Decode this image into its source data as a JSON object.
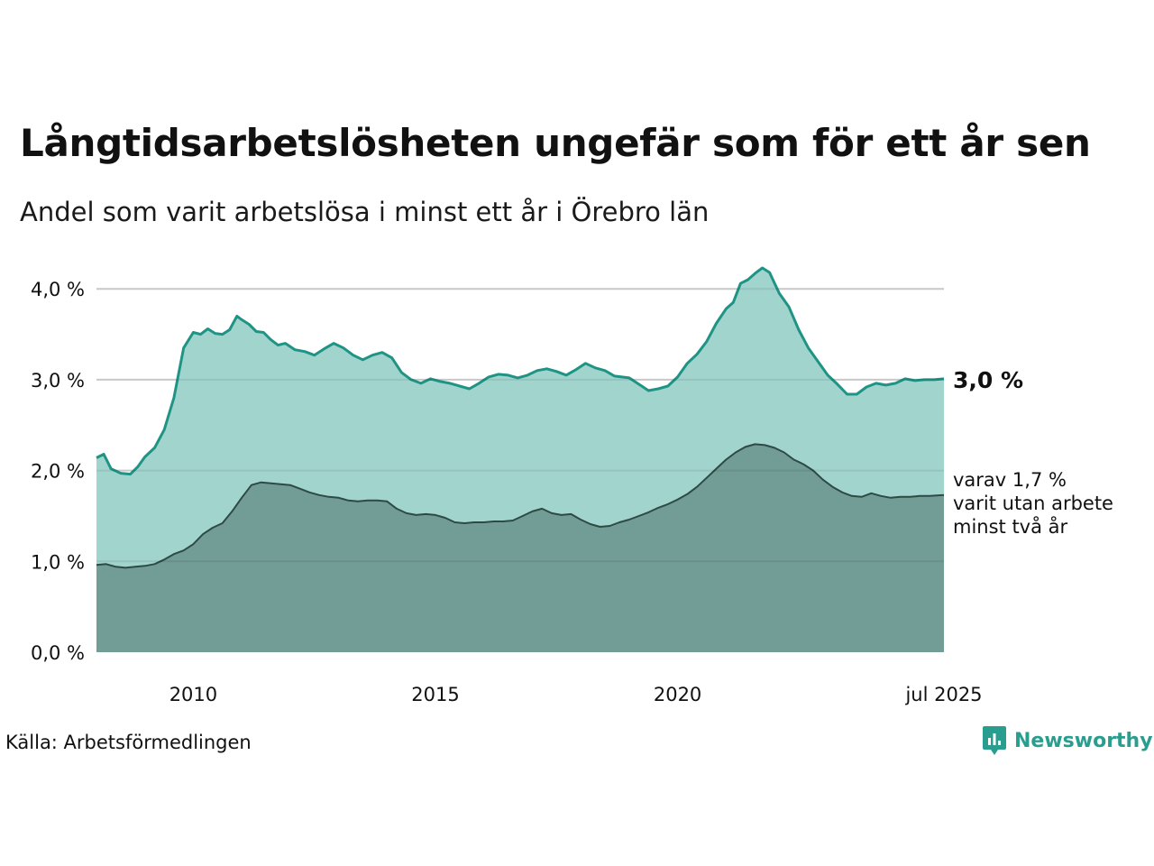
{
  "chart_data": {
    "type": "area",
    "title": "Långtidsarbetslösheten ungefär som för ett år sen",
    "subtitle": "Andel som varit arbetslösa i minst ett år i Örebro län",
    "x_tick_labels": [
      "2010",
      "2015",
      "2020",
      "jul 2025"
    ],
    "x_ticks": [
      2010.0,
      2015.0,
      2020.0,
      2025.5
    ],
    "xlim": [
      2008.0,
      2025.5
    ],
    "y_tick_labels": [
      "0,0 %",
      "1,0 %",
      "2,0 %",
      "3,0 %",
      "4,0 %"
    ],
    "y_ticks": [
      0,
      1,
      2,
      3,
      4
    ],
    "ylim": [
      0,
      4.3
    ],
    "grid": "horizontal",
    "series": [
      {
        "name": "",
        "end_label": "3,0 %",
        "color": "#1f9485",
        "fill": "#a2d4ce",
        "x": [
          2008.0,
          2008.15,
          2008.3,
          2008.5,
          2008.7,
          2008.85,
          2009.0,
          2009.2,
          2009.4,
          2009.6,
          2009.8,
          2010.0,
          2010.15,
          2010.3,
          2010.45,
          2010.6,
          2010.75,
          2010.9,
          2011.0,
          2011.15,
          2011.3,
          2011.45,
          2011.6,
          2011.75,
          2011.9,
          2012.1,
          2012.3,
          2012.5,
          2012.7,
          2012.9,
          2013.1,
          2013.3,
          2013.5,
          2013.7,
          2013.9,
          2014.1,
          2014.3,
          2014.5,
          2014.7,
          2014.9,
          2015.1,
          2015.3,
          2015.5,
          2015.7,
          2015.9,
          2016.1,
          2016.3,
          2016.5,
          2016.7,
          2016.9,
          2017.1,
          2017.3,
          2017.5,
          2017.7,
          2017.9,
          2018.1,
          2018.3,
          2018.5,
          2018.7,
          2018.85,
          2019.0,
          2019.2,
          2019.4,
          2019.6,
          2019.8,
          2020.0,
          2020.2,
          2020.4,
          2020.6,
          2020.8,
          2021.0,
          2021.15,
          2021.3,
          2021.45,
          2021.6,
          2021.75,
          2021.9,
          2022.1,
          2022.3,
          2022.5,
          2022.7,
          2022.9,
          2023.1,
          2023.3,
          2023.5,
          2023.7,
          2023.9,
          2024.1,
          2024.3,
          2024.5,
          2024.7,
          2024.9,
          2025.1,
          2025.3,
          2025.5
        ],
        "values": [
          2.14,
          2.18,
          2.02,
          1.97,
          1.96,
          2.04,
          2.15,
          2.25,
          2.45,
          2.8,
          3.35,
          3.52,
          3.5,
          3.56,
          3.51,
          3.5,
          3.55,
          3.7,
          3.66,
          3.61,
          3.53,
          3.52,
          3.44,
          3.38,
          3.4,
          3.33,
          3.31,
          3.27,
          3.34,
          3.4,
          3.35,
          3.27,
          3.22,
          3.27,
          3.3,
          3.24,
          3.08,
          3.0,
          2.96,
          3.01,
          2.98,
          2.96,
          2.93,
          2.9,
          2.96,
          3.03,
          3.06,
          3.05,
          3.02,
          3.05,
          3.1,
          3.12,
          3.09,
          3.05,
          3.11,
          3.18,
          3.13,
          3.1,
          3.04,
          3.03,
          3.02,
          2.95,
          2.88,
          2.9,
          2.93,
          3.03,
          3.18,
          3.28,
          3.42,
          3.62,
          3.78,
          3.85,
          4.06,
          4.1,
          4.17,
          4.23,
          4.18,
          3.95,
          3.8,
          3.55,
          3.35,
          3.2,
          3.05,
          2.95,
          2.84,
          2.84,
          2.92,
          2.96,
          2.94,
          2.96,
          3.01,
          2.99,
          3.0,
          3.0,
          3.01
        ]
      },
      {
        "name": "",
        "end_label_lines": [
          "varav 1,7 %",
          "varit utan arbete",
          "minst två år"
        ],
        "color": "#2e4a45",
        "fill": "#729d96",
        "x": [
          2008.0,
          2008.2,
          2008.4,
          2008.6,
          2008.8,
          2009.0,
          2009.2,
          2009.4,
          2009.6,
          2009.8,
          2010.0,
          2010.2,
          2010.4,
          2010.6,
          2010.8,
          2011.0,
          2011.2,
          2011.4,
          2011.6,
          2011.8,
          2012.0,
          2012.2,
          2012.4,
          2012.6,
          2012.8,
          2013.0,
          2013.2,
          2013.4,
          2013.6,
          2013.8,
          2014.0,
          2014.2,
          2014.4,
          2014.6,
          2014.8,
          2015.0,
          2015.2,
          2015.4,
          2015.6,
          2015.8,
          2016.0,
          2016.2,
          2016.4,
          2016.6,
          2016.8,
          2017.0,
          2017.2,
          2017.4,
          2017.6,
          2017.8,
          2018.0,
          2018.2,
          2018.4,
          2018.6,
          2018.8,
          2019.0,
          2019.2,
          2019.4,
          2019.6,
          2019.8,
          2020.0,
          2020.2,
          2020.4,
          2020.6,
          2020.8,
          2021.0,
          2021.2,
          2021.4,
          2021.6,
          2021.8,
          2022.0,
          2022.2,
          2022.4,
          2022.6,
          2022.8,
          2023.0,
          2023.2,
          2023.4,
          2023.6,
          2023.8,
          2024.0,
          2024.2,
          2024.4,
          2024.6,
          2024.8,
          2025.0,
          2025.2,
          2025.5
        ],
        "values": [
          0.96,
          0.97,
          0.94,
          0.93,
          0.94,
          0.95,
          0.97,
          1.02,
          1.08,
          1.12,
          1.19,
          1.3,
          1.37,
          1.42,
          1.55,
          1.7,
          1.84,
          1.87,
          1.86,
          1.85,
          1.84,
          1.8,
          1.76,
          1.73,
          1.71,
          1.7,
          1.67,
          1.66,
          1.67,
          1.67,
          1.66,
          1.58,
          1.53,
          1.51,
          1.52,
          1.51,
          1.48,
          1.43,
          1.42,
          1.43,
          1.43,
          1.44,
          1.44,
          1.45,
          1.5,
          1.55,
          1.58,
          1.53,
          1.51,
          1.52,
          1.46,
          1.41,
          1.38,
          1.39,
          1.43,
          1.46,
          1.5,
          1.54,
          1.59,
          1.63,
          1.68,
          1.74,
          1.82,
          1.92,
          2.02,
          2.12,
          2.2,
          2.26,
          2.29,
          2.28,
          2.25,
          2.2,
          2.12,
          2.07,
          2.0,
          1.9,
          1.82,
          1.76,
          1.72,
          1.71,
          1.75,
          1.72,
          1.7,
          1.71,
          1.71,
          1.72,
          1.72,
          1.73
        ]
      }
    ]
  },
  "source": "Källa: Arbetsförmedlingen",
  "logo": {
    "text": "Newsworthy",
    "icon": "newsworthy-chart-bubble-icon",
    "color": "#2a9e8e"
  }
}
